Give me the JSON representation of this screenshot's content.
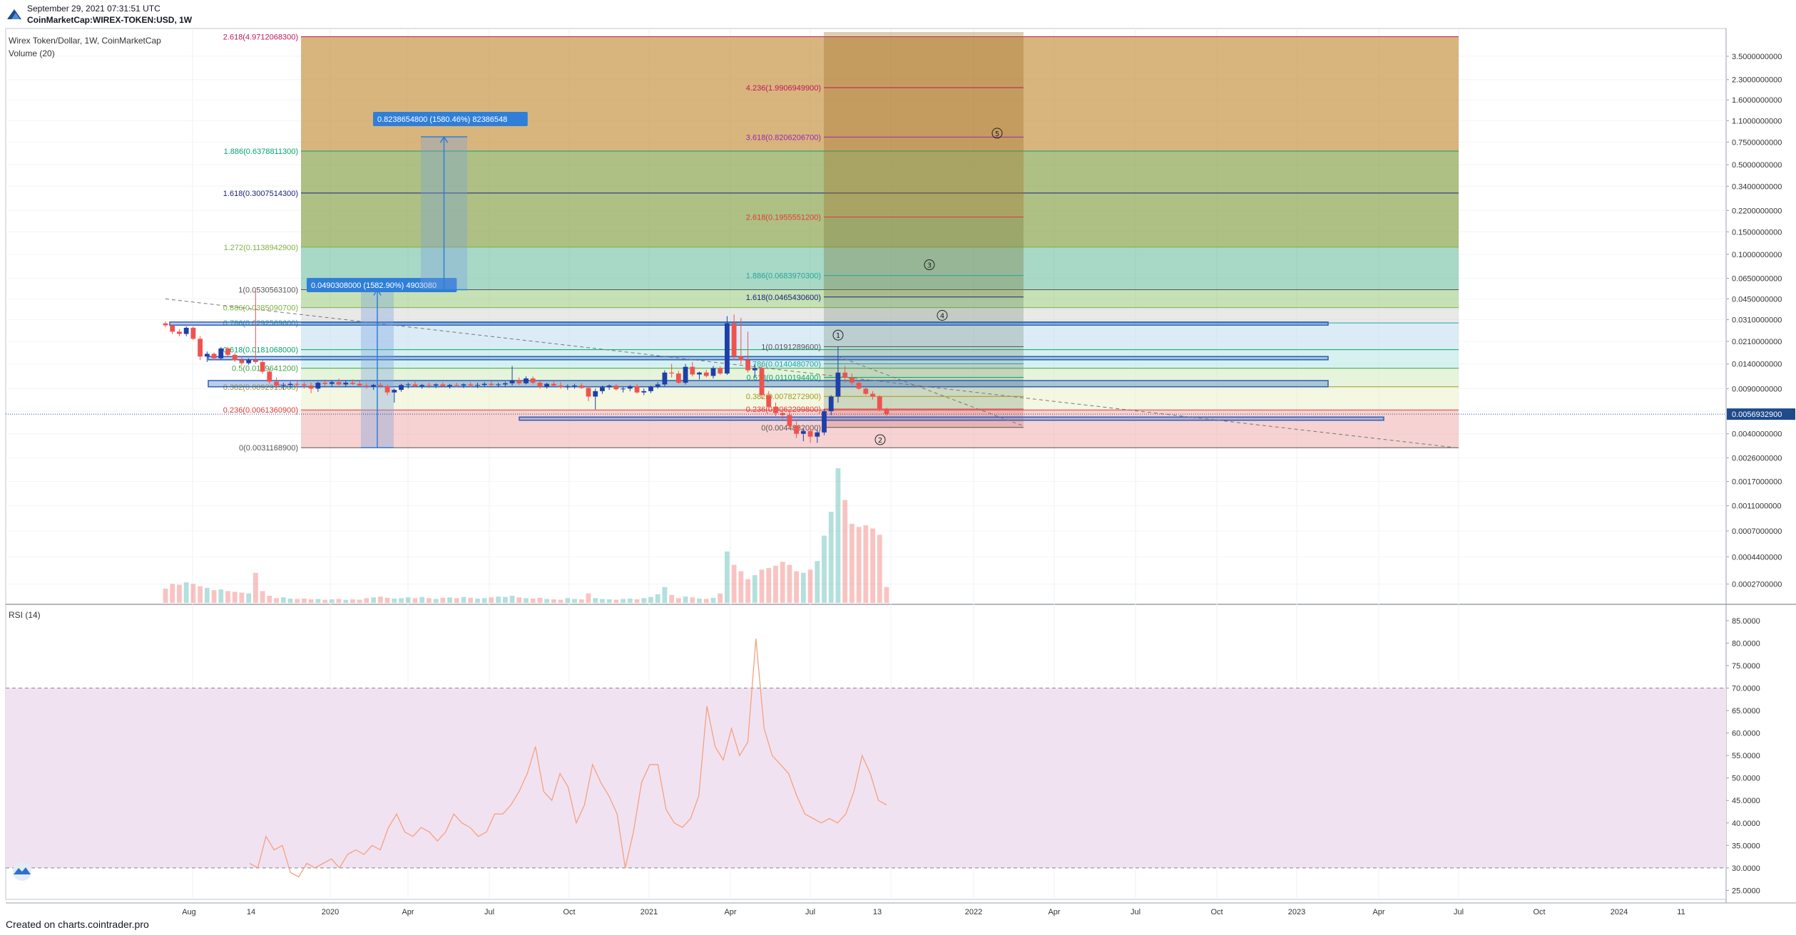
{
  "header": {
    "timestamp": "September 29, 2021 07:31:51 UTC",
    "symbol": "CoinMarketCap:WIREX-TOKEN:USD, 1W"
  },
  "legend": {
    "main": "Wirex Token/Dollar, 1W, CoinMarketCap",
    "volume": "Volume (20)",
    "rsi": "RSI (14)"
  },
  "footer": "Created on charts.cointrader.pro",
  "colors": {
    "up": "#26a69a",
    "down": "#ef5350",
    "candle_up_body": "#1f3fa8",
    "rsi_line": "#f4a27d",
    "rsi_band": "#f1e2f2",
    "price_label_bg": "#1f4a8c"
  },
  "icons": [
    "cointrader-logo-icon",
    "cointrader-mark-icon"
  ],
  "chart_data": [
    {
      "type": "candlestick",
      "title": "Wirex Token/Dollar, 1W, CoinMarketCap",
      "y_scale": "log",
      "y_ticks": [
        "3.5000000000",
        "2.3000000000",
        "1.6000000000",
        "1.1000000000",
        "0.7500000000",
        "0.5000000000",
        "0.3400000000",
        "0.2200000000",
        "0.1500000000",
        "0.1000000000",
        "0.0650000000",
        "0.0450000000",
        "0.0310000000",
        "0.0210000000",
        "0.0140000000",
        "0.0090000000",
        "0.0060000000",
        "0.0040000000",
        "0.0026000000",
        "0.0017000000",
        "0.0011000000",
        "0.0007000000",
        "0.0004400000",
        "0.0002700000"
      ],
      "last_price": "0.0056932900",
      "x_ticks": [
        "Aug",
        "14",
        "2020",
        "Apr",
        "Jul",
        "Oct",
        "2021",
        "Apr",
        "Jul",
        "13",
        "2022",
        "Apr",
        "Jul",
        "Oct",
        "2023",
        "Apr",
        "Jul",
        "Oct",
        "2024",
        "11"
      ],
      "fib_left": [
        {
          "label": "2.618(4.9712068300)",
          "level": 2.618,
          "price": 4.97120683,
          "color": "#c2185b"
        },
        {
          "label": "1.886(0.6378811300)",
          "level": 1.886,
          "price": 0.63788113,
          "color": "#00a86b"
        },
        {
          "label": "1.618(0.3007514300)",
          "level": 1.618,
          "price": 0.30075143,
          "color": "#1a237e"
        },
        {
          "label": "1.272(0.1138942900)",
          "level": 1.272,
          "price": 0.11389429,
          "color": "#7cb342"
        },
        {
          "label": "1(0.0530563100)",
          "level": 1,
          "price": 0.05305631,
          "color": "#555555"
        },
        {
          "label": "0.886(0.0385090700)",
          "level": 0.886,
          "price": 0.03850907,
          "color": "#7cb342"
        },
        {
          "label": "0.786(0.0292569600)",
          "level": 0.786,
          "price": 0.02925696,
          "color": "#26a69a"
        },
        {
          "label": "0.618(0.0181068000)",
          "level": 0.618,
          "price": 0.0181068,
          "color": "#00a86b"
        },
        {
          "label": "0.5(0.0129641200)",
          "level": 0.5,
          "price": 0.01296412,
          "color": "#43a047"
        },
        {
          "label": "0.382(0.0092915000)",
          "level": 0.382,
          "price": 0.0092915,
          "color": "#9e9d24"
        },
        {
          "label": "0.236(0.0061360900)",
          "level": 0.236,
          "price": 0.00613609,
          "color": "#e53935"
        },
        {
          "label": "0(0.0031168900)",
          "level": 0,
          "price": 0.00311689,
          "color": "#555555"
        }
      ],
      "fib_right": [
        {
          "label": "4.236(1.9906949900)",
          "level": 4.236,
          "price": 1.99069499,
          "color": "#c2185b"
        },
        {
          "label": "3.618(0.8206206700)",
          "level": 3.618,
          "price": 0.82062067,
          "color": "#9c27b0"
        },
        {
          "label": "2.618(0.1955551200)",
          "level": 2.618,
          "price": 0.19555512,
          "color": "#e53935"
        },
        {
          "label": "1.886(0.0683970300)",
          "level": 1.886,
          "price": 0.06839703,
          "color": "#26a69a"
        },
        {
          "label": "1.618(0.0465430600)",
          "level": 1.618,
          "price": 0.04654306,
          "color": "#1a237e"
        },
        {
          "label": "1(0.0191289600)",
          "level": 1,
          "price": 0.01912896,
          "color": "#555555"
        },
        {
          "label": "0.786(0.0140480700)",
          "level": 0.786,
          "price": 0.01404807,
          "color": "#26a69a"
        },
        {
          "label": "0.618(0.0110194400)",
          "level": 0.618,
          "price": 0.01101944,
          "color": "#00a86b"
        },
        {
          "label": "0.382(0.0078272900)",
          "level": 0.382,
          "price": 0.00782729,
          "color": "#9e9d24"
        },
        {
          "label": "0.236(0.0062299800)",
          "level": 0.236,
          "price": 0.00622998,
          "color": "#e53935"
        },
        {
          "label": "0(0.0044832000)",
          "level": 0,
          "price": 0.0044832,
          "color": "#555555"
        }
      ],
      "measure_labels": [
        "0.0490308000 (1582.90%) 4903080",
        "0.8238654800 (1580.46%) 82386548"
      ],
      "wave_labels": [
        "①",
        "②",
        "③",
        "④",
        "⑤"
      ],
      "candles": [
        [
          0.029,
          0.03,
          0.027,
          0.028
        ],
        [
          0.028,
          0.0285,
          0.024,
          0.025
        ],
        [
          0.025,
          0.0262,
          0.023,
          0.024
        ],
        [
          0.024,
          0.0275,
          0.023,
          0.0268
        ],
        [
          0.0268,
          0.0275,
          0.0215,
          0.022
        ],
        [
          0.022,
          0.023,
          0.015,
          0.016
        ],
        [
          0.016,
          0.0175,
          0.0145,
          0.0168
        ],
        [
          0.0168,
          0.0172,
          0.015,
          0.0155
        ],
        [
          0.0155,
          0.019,
          0.015,
          0.0185
        ],
        [
          0.0185,
          0.019,
          0.016,
          0.0165
        ],
        [
          0.0165,
          0.017,
          0.0145,
          0.015
        ],
        [
          0.015,
          0.016,
          0.0138,
          0.0142
        ],
        [
          0.0142,
          0.0155,
          0.0138,
          0.015
        ],
        [
          0.015,
          0.053,
          0.014,
          0.0145
        ],
        [
          0.0145,
          0.015,
          0.0118,
          0.0122
        ],
        [
          0.0122,
          0.0128,
          0.0098,
          0.0102
        ],
        [
          0.0102,
          0.011,
          0.009,
          0.0095
        ],
        [
          0.0095,
          0.01,
          0.0088,
          0.0096
        ],
        [
          0.0096,
          0.0102,
          0.009,
          0.0098
        ],
        [
          0.0098,
          0.0104,
          0.0092,
          0.0097
        ],
        [
          0.0097,
          0.0101,
          0.009,
          0.0095
        ],
        [
          0.0095,
          0.01,
          0.0083,
          0.009
        ],
        [
          0.009,
          0.0102,
          0.0085,
          0.01
        ],
        [
          0.01,
          0.0106,
          0.0094,
          0.0098
        ],
        [
          0.0098,
          0.0104,
          0.0093,
          0.0101
        ],
        [
          0.0101,
          0.0108,
          0.0095,
          0.0097
        ],
        [
          0.0097,
          0.0104,
          0.0092,
          0.01
        ],
        [
          0.01,
          0.0106,
          0.0096,
          0.0098
        ],
        [
          0.0098,
          0.0103,
          0.0093,
          0.0095
        ],
        [
          0.0095,
          0.0099,
          0.009,
          0.0093
        ],
        [
          0.0093,
          0.0098,
          0.0088,
          0.0096
        ],
        [
          0.0096,
          0.01,
          0.0091,
          0.0094
        ],
        [
          0.0094,
          0.0097,
          0.008,
          0.0084
        ],
        [
          0.0084,
          0.009,
          0.007,
          0.0088
        ],
        [
          0.0088,
          0.0098,
          0.0085,
          0.0096
        ],
        [
          0.0096,
          0.01,
          0.009,
          0.0097
        ],
        [
          0.0097,
          0.0102,
          0.0092,
          0.0094
        ],
        [
          0.0094,
          0.0098,
          0.009,
          0.0096
        ],
        [
          0.0096,
          0.01,
          0.0091,
          0.0095
        ],
        [
          0.0095,
          0.0099,
          0.0091,
          0.0097
        ],
        [
          0.0097,
          0.0101,
          0.0092,
          0.0094
        ],
        [
          0.0094,
          0.0098,
          0.009,
          0.0096
        ],
        [
          0.0096,
          0.01,
          0.0092,
          0.0095
        ],
        [
          0.0095,
          0.0099,
          0.0091,
          0.0097
        ],
        [
          0.0097,
          0.0101,
          0.0092,
          0.0095
        ],
        [
          0.0095,
          0.01,
          0.0091,
          0.0096
        ],
        [
          0.0096,
          0.0101,
          0.0093,
          0.0098
        ],
        [
          0.0098,
          0.0103,
          0.0094,
          0.0096
        ],
        [
          0.0096,
          0.01,
          0.0092,
          0.0097
        ],
        [
          0.0097,
          0.0102,
          0.0093,
          0.0099
        ],
        [
          0.0099,
          0.0135,
          0.0095,
          0.0104
        ],
        [
          0.0104,
          0.011,
          0.0096,
          0.0099
        ],
        [
          0.0099,
          0.0112,
          0.0097,
          0.0108
        ],
        [
          0.0108,
          0.0112,
          0.0097,
          0.01
        ],
        [
          0.01,
          0.0104,
          0.009,
          0.0093
        ],
        [
          0.0093,
          0.01,
          0.009,
          0.0098
        ],
        [
          0.0098,
          0.0104,
          0.0093,
          0.0095
        ],
        [
          0.0095,
          0.0101,
          0.009,
          0.0092
        ],
        [
          0.0092,
          0.0097,
          0.0088,
          0.0094
        ],
        [
          0.0094,
          0.0098,
          0.009,
          0.0095
        ],
        [
          0.0095,
          0.0099,
          0.009,
          0.0091
        ],
        [
          0.0091,
          0.0094,
          0.0072,
          0.0078
        ],
        [
          0.0078,
          0.009,
          0.0062,
          0.0086
        ],
        [
          0.0086,
          0.0095,
          0.0082,
          0.0092
        ],
        [
          0.0092,
          0.0097,
          0.0088,
          0.0095
        ],
        [
          0.0095,
          0.0098,
          0.0087,
          0.0089
        ],
        [
          0.0089,
          0.0093,
          0.0084,
          0.009
        ],
        [
          0.009,
          0.0096,
          0.0086,
          0.0094
        ],
        [
          0.0094,
          0.0098,
          0.0082,
          0.0084
        ],
        [
          0.0084,
          0.009,
          0.008,
          0.0086
        ],
        [
          0.0086,
          0.0095,
          0.0083,
          0.0093
        ],
        [
          0.0093,
          0.0101,
          0.009,
          0.0097
        ],
        [
          0.0097,
          0.0125,
          0.0094,
          0.012
        ],
        [
          0.012,
          0.014,
          0.011,
          0.0118
        ],
        [
          0.0118,
          0.0124,
          0.0098,
          0.01
        ],
        [
          0.01,
          0.014,
          0.0097,
          0.0133
        ],
        [
          0.0133,
          0.0145,
          0.0112,
          0.0116
        ],
        [
          0.0116,
          0.0122,
          0.0106,
          0.012
        ],
        [
          0.012,
          0.0126,
          0.011,
          0.0113
        ],
        [
          0.0113,
          0.0135,
          0.0108,
          0.013
        ],
        [
          0.013,
          0.0134,
          0.0115,
          0.0118
        ],
        [
          0.0118,
          0.033,
          0.0115,
          0.029
        ],
        [
          0.029,
          0.034,
          0.015,
          0.016
        ],
        [
          0.016,
          0.032,
          0.014,
          0.015
        ],
        [
          0.015,
          0.025,
          0.012,
          0.0125
        ],
        [
          0.0125,
          0.014,
          0.011,
          0.013
        ],
        [
          0.013,
          0.0135,
          0.0075,
          0.008
        ],
        [
          0.008,
          0.0086,
          0.006,
          0.0065
        ],
        [
          0.0065,
          0.007,
          0.0055,
          0.0058
        ],
        [
          0.0058,
          0.0062,
          0.0052,
          0.0056
        ],
        [
          0.0056,
          0.006,
          0.0044,
          0.0046
        ],
        [
          0.0046,
          0.005,
          0.0037,
          0.004
        ],
        [
          0.004,
          0.0044,
          0.0035,
          0.0042
        ],
        [
          0.0042,
          0.0046,
          0.0034,
          0.0038
        ],
        [
          0.0038,
          0.0043,
          0.0034,
          0.0041
        ],
        [
          0.0041,
          0.0062,
          0.0039,
          0.006
        ],
        [
          0.006,
          0.008,
          0.0056,
          0.0078
        ],
        [
          0.0078,
          0.0191,
          0.007,
          0.012
        ],
        [
          0.012,
          0.0135,
          0.01,
          0.011
        ],
        [
          0.011,
          0.0118,
          0.0096,
          0.01
        ],
        [
          0.01,
          0.0104,
          0.0088,
          0.009
        ],
        [
          0.009,
          0.0094,
          0.008,
          0.0082
        ],
        [
          0.0082,
          0.0086,
          0.0074,
          0.0078
        ],
        [
          0.0078,
          0.008,
          0.006,
          0.0062
        ],
        [
          0.0062,
          0.0064,
          0.0055,
          0.0057
        ]
      ],
      "volume": [
        180,
        240,
        230,
        260,
        240,
        210,
        190,
        160,
        170,
        150,
        140,
        130,
        120,
        380,
        150,
        90,
        60,
        70,
        55,
        50,
        55,
        45,
        50,
        40,
        45,
        50,
        40,
        45,
        40,
        60,
        70,
        80,
        65,
        55,
        60,
        70,
        60,
        75,
        60,
        50,
        65,
        70,
        60,
        75,
        65,
        55,
        60,
        70,
        80,
        75,
        90,
        70,
        60,
        55,
        65,
        50,
        45,
        40,
        60,
        50,
        45,
        120,
        60,
        50,
        45,
        40,
        50,
        55,
        45,
        60,
        75,
        110,
        200,
        100,
        60,
        80,
        70,
        55,
        50,
        65,
        120,
        650,
        480,
        400,
        300,
        350,
        420,
        440,
        470,
        520,
        480,
        400,
        380,
        420,
        530,
        850,
        1150,
        1700,
        1300,
        1000,
        960,
        980,
        940,
        860,
        200
      ],
      "rsi": [
        31,
        30,
        37,
        34,
        35,
        29,
        28,
        31,
        30,
        31,
        32,
        30,
        33,
        34,
        33,
        35,
        34,
        39,
        42,
        38,
        37,
        39,
        38,
        36,
        38,
        42,
        40,
        39,
        37,
        38,
        42,
        42,
        44,
        47,
        51,
        57,
        47,
        45,
        51,
        48,
        40,
        44,
        53,
        49,
        46,
        42,
        30,
        38,
        49,
        53,
        53,
        43,
        40,
        39,
        41,
        46,
        66,
        57,
        54,
        61,
        55,
        58,
        81,
        61,
        55,
        53,
        51,
        46,
        42,
        41,
        40,
        41,
        40,
        42,
        47,
        55,
        51,
        45,
        44
      ],
      "rsi_ticks": [
        "85.0000",
        "80.0000",
        "75.0000",
        "70.0000",
        "65.0000",
        "60.0000",
        "55.0000",
        "50.0000",
        "45.0000",
        "40.0000",
        "35.0000",
        "30.0000",
        "25.0000"
      ],
      "rsi_bands": [
        30,
        70
      ]
    }
  ]
}
